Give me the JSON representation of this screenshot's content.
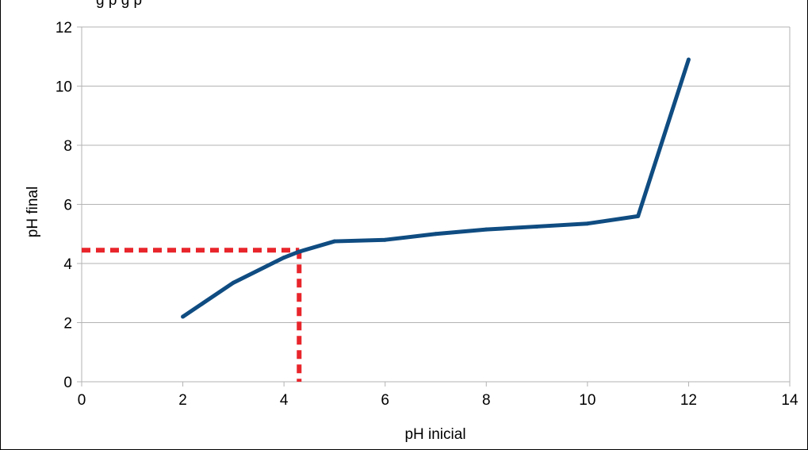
{
  "chart_data": {
    "type": "line",
    "title": "",
    "xlabel": "pH inicial",
    "ylabel": "pH final",
    "xlim": [
      0,
      14
    ],
    "ylim": [
      0,
      12
    ],
    "xticks": [
      0,
      2,
      4,
      6,
      8,
      10,
      12,
      14
    ],
    "yticks": [
      0,
      2,
      4,
      6,
      8,
      10,
      12
    ],
    "xtick_labels": [
      "0",
      "2",
      "4",
      "6",
      "8",
      "10",
      "12",
      "14"
    ],
    "ytick_labels": [
      "0",
      "2",
      "4",
      "6",
      "8",
      "10",
      "12"
    ],
    "grid": {
      "horizontal": true,
      "vertical": false
    },
    "legend": "none",
    "series": [
      {
        "color": "#0f4c81",
        "x": [
          2,
          3,
          4,
          4.3,
          5,
          6,
          7,
          8,
          9,
          10,
          11,
          12
        ],
        "y": [
          2.2,
          3.35,
          4.2,
          4.4,
          4.75,
          4.8,
          5.0,
          5.15,
          5.25,
          5.35,
          5.6,
          10.9
        ]
      }
    ],
    "guide_lines": {
      "color": "#e8252b",
      "style": "dashed",
      "x": 4.3,
      "y": 4.45
    },
    "top_caption": "g          p          g          p"
  }
}
